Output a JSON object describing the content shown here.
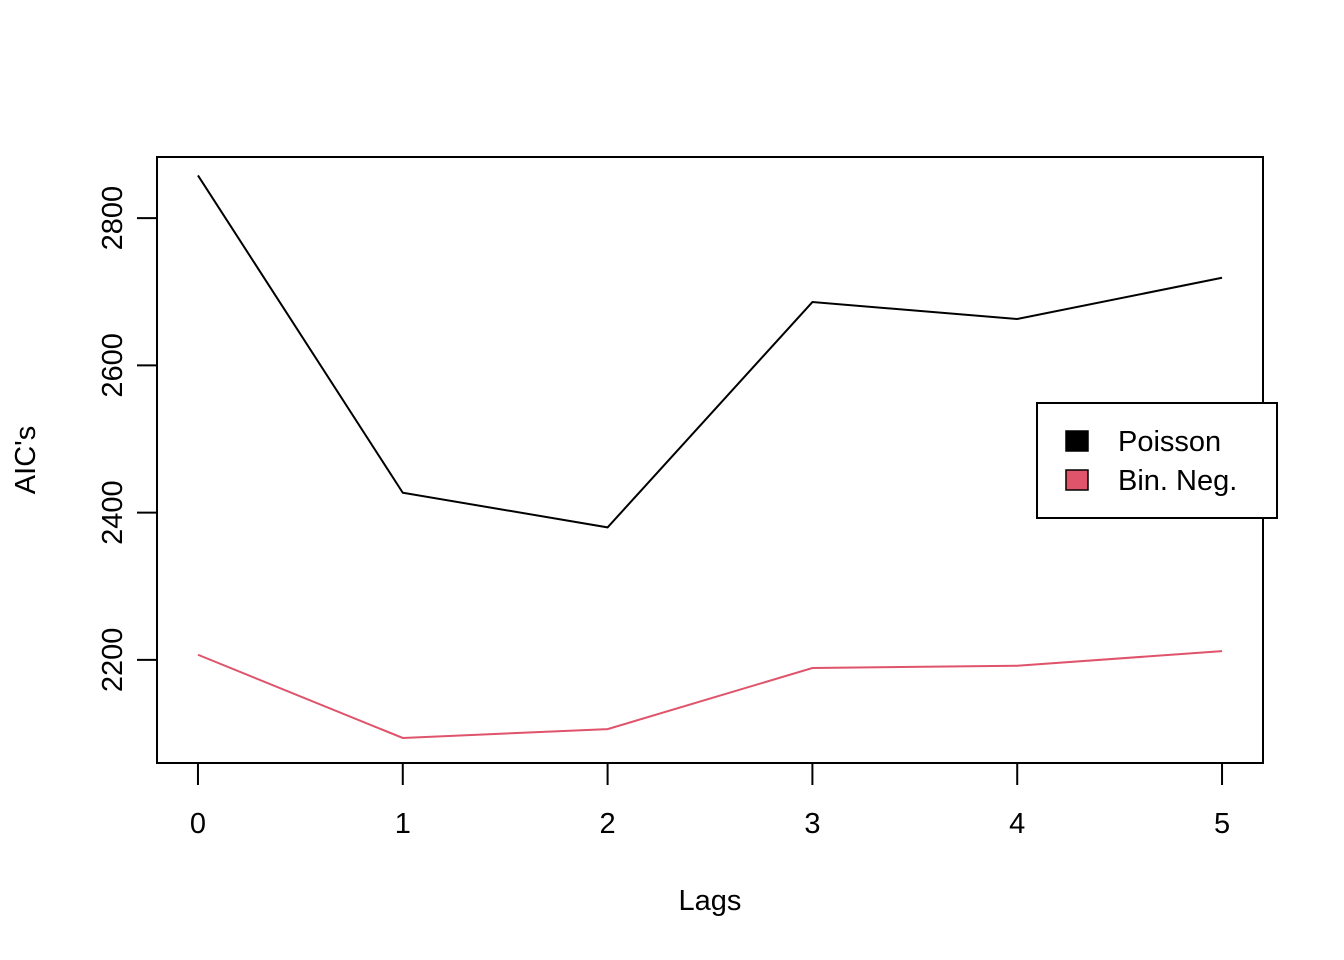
{
  "chart_data": {
    "type": "line",
    "x_label": "Lags",
    "y_label": "AIC's",
    "x": [
      0,
      1,
      2,
      3,
      4,
      5
    ],
    "series": [
      {
        "name": "Poisson",
        "color": "#000000",
        "values": [
          2858,
          2427,
          2380,
          2686,
          2663,
          2719
        ]
      },
      {
        "name": "Bin. Neg.",
        "color": "#DF536B",
        "values": [
          2207,
          2094,
          2106,
          2189,
          2192,
          2212
        ]
      }
    ],
    "xlim": [
      -0.2,
      5.2
    ],
    "ylim": [
      2060,
      2883
    ],
    "xticks": [
      0,
      1,
      2,
      3,
      4,
      5
    ],
    "yticks": [
      2200,
      2400,
      2600,
      2800
    ],
    "legend": "right"
  }
}
